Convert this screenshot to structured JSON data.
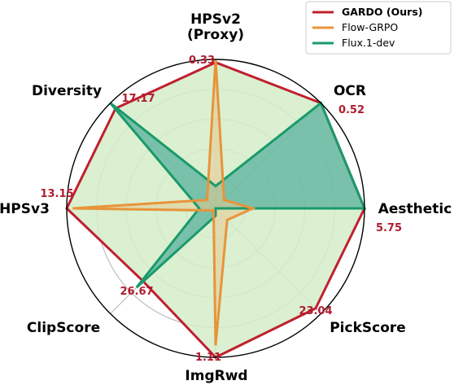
{
  "chart_data": {
    "type": "radar",
    "axes": [
      "HPSv2\n(Proxy)",
      "OCR",
      "Aesthetic",
      "PickScore",
      "ImgRwd",
      "ClipScore",
      "HPSv3",
      "Diversity"
    ],
    "axis_max_labels": [
      "0.33",
      "0.52",
      "5.75",
      "23.04",
      "1.11",
      "26.67",
      "13.15",
      "17.17"
    ],
    "scale": "normalized to axis maximum",
    "radial_range": [
      0,
      1
    ],
    "grid": true,
    "grid_levels": [
      0.2,
      0.4,
      0.6,
      0.8
    ],
    "legend_position": "top-right",
    "series": [
      {
        "name": "GARDO (Ours)",
        "color": "#c0202e",
        "fill": "#d4edc9",
        "values": [
          0.98,
          1.0,
          1.0,
          0.95,
          1.0,
          0.69,
          1.0,
          0.95
        ]
      },
      {
        "name": "Flow-GRPO",
        "color": "#e8943a",
        "fill": "#e8c98f",
        "values": [
          1.0,
          0.08,
          0.25,
          0.11,
          0.92,
          0.02,
          0.96,
          0.08
        ]
      },
      {
        "name": "Flux.1-dev",
        "color": "#1a9a6a",
        "fill": "#2a9a8a",
        "values": [
          0.15,
          1.0,
          1.0,
          0.0,
          0.05,
          0.75,
          0.11,
          1.0
        ]
      }
    ]
  }
}
